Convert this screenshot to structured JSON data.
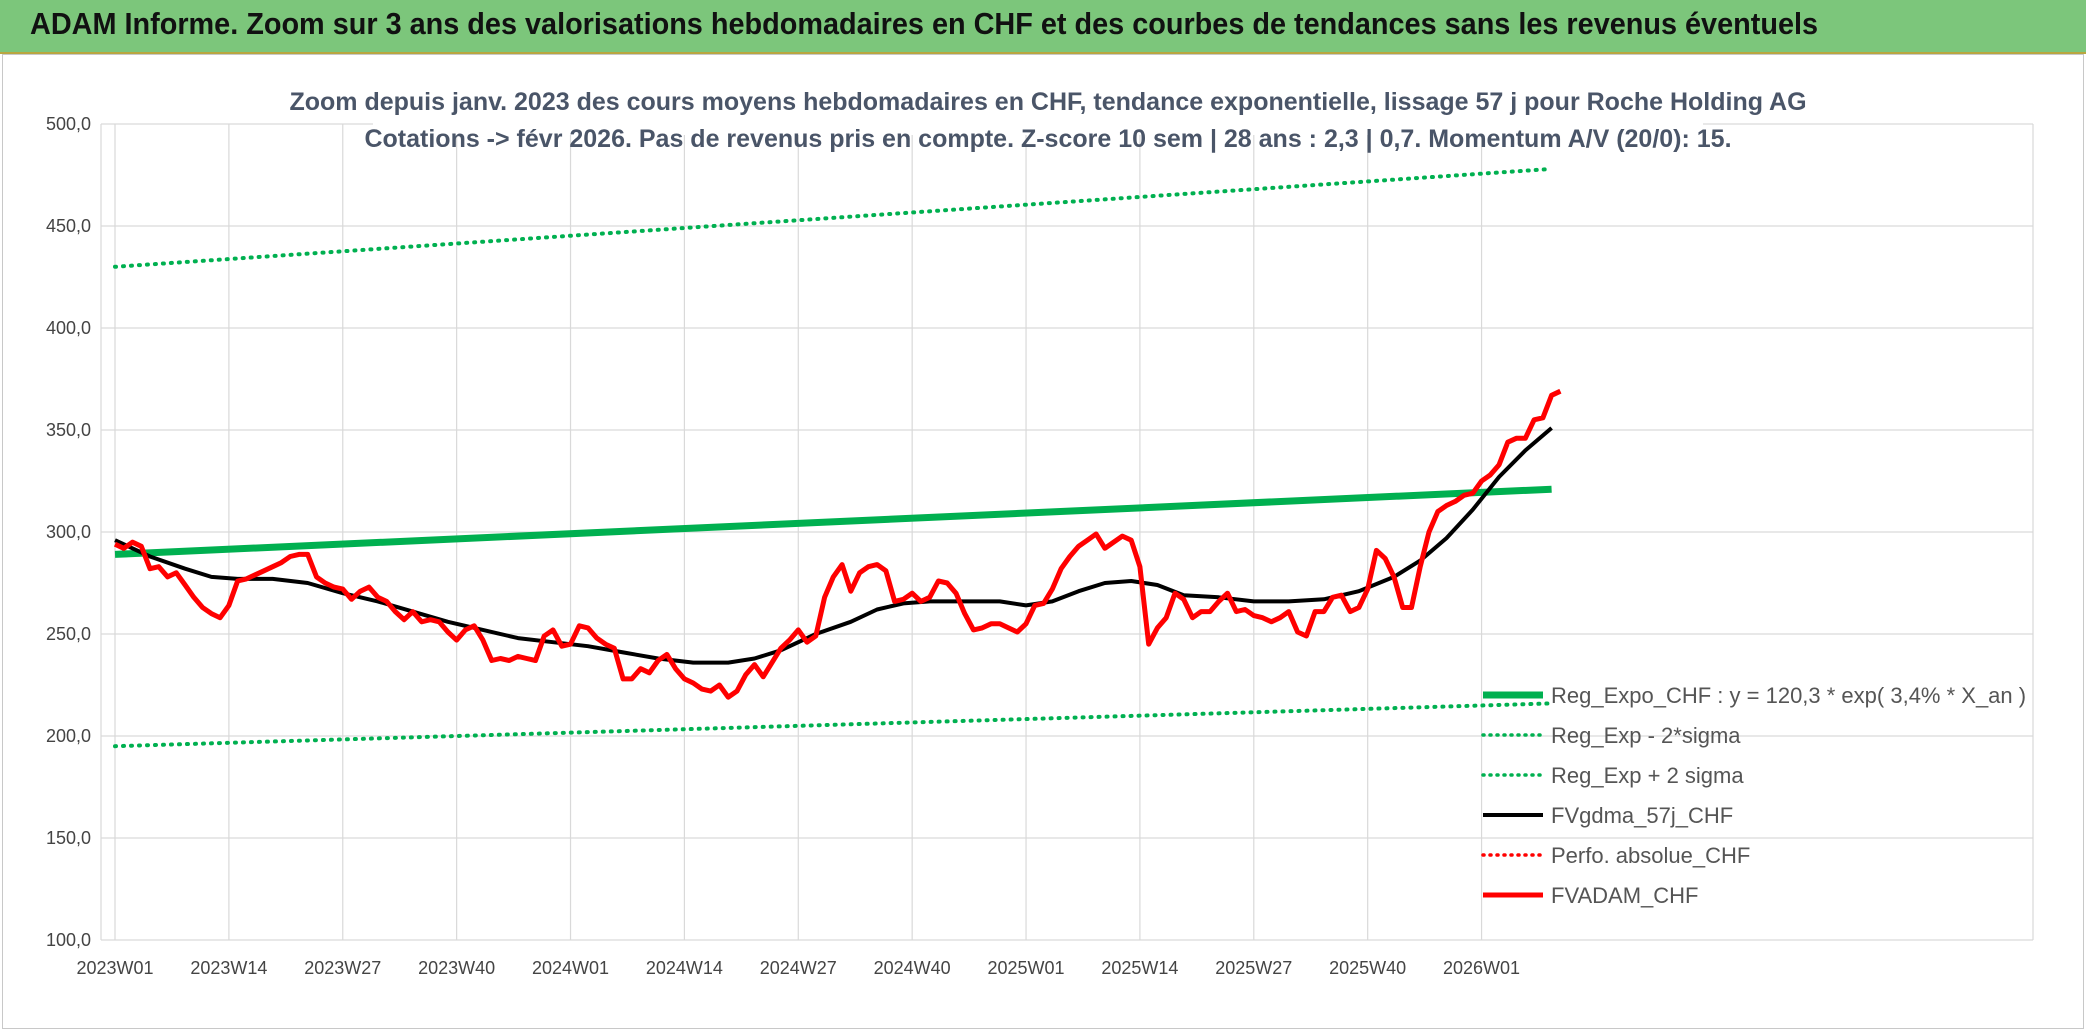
{
  "header": {
    "title": "ADAM Informe. Zoom sur 3 ans des valorisations hebdomadaires en CHF et des courbes de tendances sans les revenus éventuels"
  },
  "chart_data": {
    "type": "line",
    "title_line1": "Zoom depuis janv. 2023 des cours moyens hebdomadaires en CHF, tendance exponentielle, lissage 57 j pour Roche Holding AG",
    "title_line2": "Cotations -> févr 2026. Pas de revenus pris en compte. Z-score 10 sem | 28 ans : 2,3 | 0,7. Momentum A/V (20/0): 15.",
    "ylim": [
      100,
      500
    ],
    "ytick_labels": [
      "100,0",
      "150,0",
      "200,0",
      "250,0",
      "300,0",
      "350,0",
      "400,0",
      "450,0",
      "500,0"
    ],
    "xtick_labels": [
      "2023W01",
      "2023W14",
      "2023W27",
      "2023W40",
      "2024W01",
      "2024W14",
      "2024W27",
      "2024W40",
      "2025W01",
      "2025W14",
      "2025W27",
      "2025W40",
      "2026W01"
    ],
    "x_range_weeks": [
      0,
      164
    ],
    "grid": true,
    "legend_position": "lower-right",
    "series": [
      {
        "name": "Reg_Expo_CHF : y = 120,3 * exp( 3,4% * X_an )",
        "color": "#00b050",
        "style": "solid-thick",
        "points": [
          [
            0,
            289
          ],
          [
            164,
            321
          ]
        ]
      },
      {
        "name": "Reg_Exp - 2*sigma",
        "color": "#00b050",
        "style": "dotted",
        "points": [
          [
            0,
            195
          ],
          [
            164,
            216
          ]
        ]
      },
      {
        "name": "Reg_Exp + 2 sigma",
        "color": "#00b050",
        "style": "dotted",
        "points": [
          [
            0,
            430
          ],
          [
            164,
            478
          ]
        ]
      },
      {
        "name": "FVgdma_57j_CHF",
        "color": "#000000",
        "style": "solid",
        "points": [
          [
            0,
            296
          ],
          [
            4,
            288
          ],
          [
            8,
            282
          ],
          [
            11,
            278
          ],
          [
            14,
            277
          ],
          [
            18,
            277
          ],
          [
            22,
            275
          ],
          [
            26,
            270
          ],
          [
            30,
            266
          ],
          [
            34,
            261
          ],
          [
            38,
            256
          ],
          [
            42,
            252
          ],
          [
            46,
            248
          ],
          [
            50,
            246
          ],
          [
            54,
            244
          ],
          [
            58,
            241
          ],
          [
            62,
            238
          ],
          [
            66,
            236
          ],
          [
            70,
            236
          ],
          [
            73,
            238
          ],
          [
            76,
            242
          ],
          [
            80,
            250
          ],
          [
            84,
            256
          ],
          [
            87,
            262
          ],
          [
            90,
            265
          ],
          [
            93,
            266
          ],
          [
            97,
            266
          ],
          [
            101,
            266
          ],
          [
            104,
            264
          ],
          [
            107,
            266
          ],
          [
            110,
            271
          ],
          [
            113,
            275
          ],
          [
            116,
            276
          ],
          [
            119,
            274
          ],
          [
            122,
            269
          ],
          [
            126,
            268
          ],
          [
            130,
            266
          ],
          [
            134,
            266
          ],
          [
            138,
            267
          ],
          [
            142,
            271
          ],
          [
            146,
            278
          ],
          [
            149,
            286
          ],
          [
            152,
            297
          ],
          [
            155,
            311
          ],
          [
            158,
            327
          ],
          [
            161,
            340
          ],
          [
            164,
            351
          ]
        ]
      },
      {
        "name": "Perfo. absolue_CHF",
        "color": "#ff0000",
        "style": "dotted",
        "points": []
      },
      {
        "name": "FVADAM_CHF",
        "color": "#ff0000",
        "style": "solid-thick",
        "points": [
          [
            0,
            294
          ],
          [
            1,
            292
          ],
          [
            2,
            295
          ],
          [
            3,
            293
          ],
          [
            4,
            282
          ],
          [
            5,
            283
          ],
          [
            6,
            278
          ],
          [
            7,
            280
          ],
          [
            8,
            274
          ],
          [
            9,
            268
          ],
          [
            10,
            263
          ],
          [
            11,
            260
          ],
          [
            12,
            258
          ],
          [
            13,
            264
          ],
          [
            14,
            276
          ],
          [
            15,
            277
          ],
          [
            16,
            279
          ],
          [
            17,
            281
          ],
          [
            18,
            283
          ],
          [
            19,
            285
          ],
          [
            20,
            288
          ],
          [
            21,
            289
          ],
          [
            22,
            289
          ],
          [
            23,
            278
          ],
          [
            24,
            275
          ],
          [
            25,
            273
          ],
          [
            26,
            272
          ],
          [
            27,
            267
          ],
          [
            28,
            271
          ],
          [
            29,
            273
          ],
          [
            30,
            268
          ],
          [
            31,
            266
          ],
          [
            32,
            261
          ],
          [
            33,
            257
          ],
          [
            34,
            261
          ],
          [
            35,
            256
          ],
          [
            36,
            257
          ],
          [
            37,
            256
          ],
          [
            38,
            251
          ],
          [
            39,
            247
          ],
          [
            40,
            252
          ],
          [
            41,
            254
          ],
          [
            42,
            247
          ],
          [
            43,
            237
          ],
          [
            44,
            238
          ],
          [
            45,
            237
          ],
          [
            46,
            239
          ],
          [
            47,
            238
          ],
          [
            48,
            237
          ],
          [
            49,
            249
          ],
          [
            50,
            252
          ],
          [
            51,
            244
          ],
          [
            52,
            245
          ],
          [
            53,
            254
          ],
          [
            54,
            253
          ],
          [
            55,
            248
          ],
          [
            56,
            245
          ],
          [
            57,
            243
          ],
          [
            58,
            228
          ],
          [
            59,
            228
          ],
          [
            60,
            233
          ],
          [
            61,
            231
          ],
          [
            62,
            237
          ],
          [
            63,
            240
          ],
          [
            64,
            233
          ],
          [
            65,
            228
          ],
          [
            66,
            226
          ],
          [
            67,
            223
          ],
          [
            68,
            222
          ],
          [
            69,
            225
          ],
          [
            70,
            219
          ],
          [
            71,
            222
          ],
          [
            72,
            230
          ],
          [
            73,
            235
          ],
          [
            74,
            229
          ],
          [
            75,
            236
          ],
          [
            76,
            243
          ],
          [
            77,
            247
          ],
          [
            78,
            252
          ],
          [
            79,
            246
          ],
          [
            80,
            249
          ],
          [
            81,
            268
          ],
          [
            82,
            278
          ],
          [
            83,
            284
          ],
          [
            84,
            271
          ],
          [
            85,
            280
          ],
          [
            86,
            283
          ],
          [
            87,
            284
          ],
          [
            88,
            281
          ],
          [
            89,
            266
          ],
          [
            90,
            267
          ],
          [
            91,
            270
          ],
          [
            92,
            266
          ],
          [
            93,
            268
          ],
          [
            94,
            276
          ],
          [
            95,
            275
          ],
          [
            96,
            270
          ],
          [
            97,
            260
          ],
          [
            98,
            252
          ],
          [
            99,
            253
          ],
          [
            100,
            255
          ],
          [
            101,
            255
          ],
          [
            102,
            253
          ],
          [
            103,
            251
          ],
          [
            104,
            255
          ],
          [
            105,
            264
          ],
          [
            106,
            265
          ],
          [
            107,
            272
          ],
          [
            108,
            282
          ],
          [
            109,
            288
          ],
          [
            110,
            293
          ],
          [
            111,
            296
          ],
          [
            112,
            299
          ],
          [
            113,
            292
          ],
          [
            114,
            295
          ],
          [
            115,
            298
          ],
          [
            116,
            296
          ],
          [
            117,
            283
          ],
          [
            118,
            245
          ],
          [
            119,
            253
          ],
          [
            120,
            258
          ],
          [
            121,
            270
          ],
          [
            122,
            267
          ],
          [
            123,
            258
          ],
          [
            124,
            261
          ],
          [
            125,
            261
          ],
          [
            126,
            266
          ],
          [
            127,
            270
          ],
          [
            128,
            261
          ],
          [
            129,
            262
          ],
          [
            130,
            259
          ],
          [
            131,
            258
          ],
          [
            132,
            256
          ],
          [
            133,
            258
          ],
          [
            134,
            261
          ],
          [
            135,
            251
          ],
          [
            136,
            249
          ],
          [
            137,
            261
          ],
          [
            138,
            261
          ],
          [
            139,
            268
          ],
          [
            140,
            269
          ],
          [
            141,
            261
          ],
          [
            142,
            263
          ],
          [
            143,
            272
          ],
          [
            144,
            291
          ],
          [
            145,
            287
          ],
          [
            146,
            278
          ],
          [
            147,
            263
          ],
          [
            148,
            263
          ],
          [
            149,
            283
          ],
          [
            150,
            300
          ],
          [
            151,
            310
          ],
          [
            152,
            313
          ],
          [
            153,
            315
          ],
          [
            154,
            318
          ],
          [
            155,
            319
          ],
          [
            156,
            325
          ],
          [
            157,
            328
          ],
          [
            158,
            333
          ],
          [
            159,
            344
          ],
          [
            160,
            346
          ],
          [
            161,
            346
          ],
          [
            162,
            355
          ],
          [
            163,
            356
          ],
          [
            164,
            367
          ],
          [
            165,
            369
          ]
        ]
      }
    ]
  }
}
